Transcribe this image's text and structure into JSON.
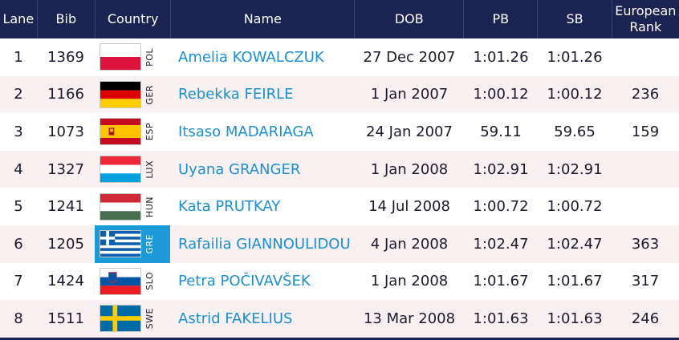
{
  "headers": {
    "lane": "Lane",
    "bib": "Bib",
    "country": "Country",
    "name": "Name",
    "dob": "DOB",
    "pb": "PB",
    "sb": "SB",
    "rank": "European\nRank"
  },
  "rows": [
    {
      "lane": "1",
      "bib": "1369",
      "code": "POL",
      "flag": "poland-flag-icon",
      "name": "Amelia KOWALCZUK",
      "dob": "27 Dec 2007",
      "pb": "1:01.26",
      "sb": "1:01.26",
      "rank": ""
    },
    {
      "lane": "2",
      "bib": "1166",
      "code": "GER",
      "flag": "germany-flag-icon",
      "name": "Rebekka FEIRLE",
      "dob": "1 Jan 2007",
      "pb": "1:00.12",
      "sb": "1:00.12",
      "rank": "236"
    },
    {
      "lane": "3",
      "bib": "1073",
      "code": "ESP",
      "flag": "spain-flag-icon",
      "name": "Itsaso MADARIAGA",
      "dob": "24 Jan 2007",
      "pb": "59.11",
      "sb": "59.65",
      "rank": "159"
    },
    {
      "lane": "4",
      "bib": "1327",
      "code": "LUX",
      "flag": "luxembourg-flag-icon",
      "name": "Uyana GRANGER",
      "dob": "1 Jan 2008",
      "pb": "1:02.91",
      "sb": "1:02.91",
      "rank": ""
    },
    {
      "lane": "5",
      "bib": "1241",
      "code": "HUN",
      "flag": "hungary-flag-icon",
      "name": "Kata PRUTKAY",
      "dob": "14 Jul 2008",
      "pb": "1:00.72",
      "sb": "1:00.72",
      "rank": ""
    },
    {
      "lane": "6",
      "bib": "1205",
      "code": "GRE",
      "flag": "greece-flag-icon",
      "name": "Rafailia GIANNOULIDOU",
      "dob": "4 Jan 2008",
      "pb": "1:02.47",
      "sb": "1:02.47",
      "rank": "363"
    },
    {
      "lane": "7",
      "bib": "1424",
      "code": "SLO",
      "flag": "slovenia-flag-icon",
      "name": "Petra POČIVAVŠEK",
      "dob": "1 Jan 2008",
      "pb": "1:01.67",
      "sb": "1:01.67",
      "rank": "317"
    },
    {
      "lane": "8",
      "bib": "1511",
      "code": "SWE",
      "flag": "sweden-flag-icon",
      "name": "Astrid FAKELIUS",
      "dob": "13 Mar 2008",
      "pb": "1:01.63",
      "sb": "1:01.63",
      "rank": "246"
    }
  ],
  "colors": {
    "header_bg": "#1a2352",
    "name_link": "#1a8fd4",
    "alt_row": "#f9f0f1",
    "highlight": "#1a9ad6"
  }
}
